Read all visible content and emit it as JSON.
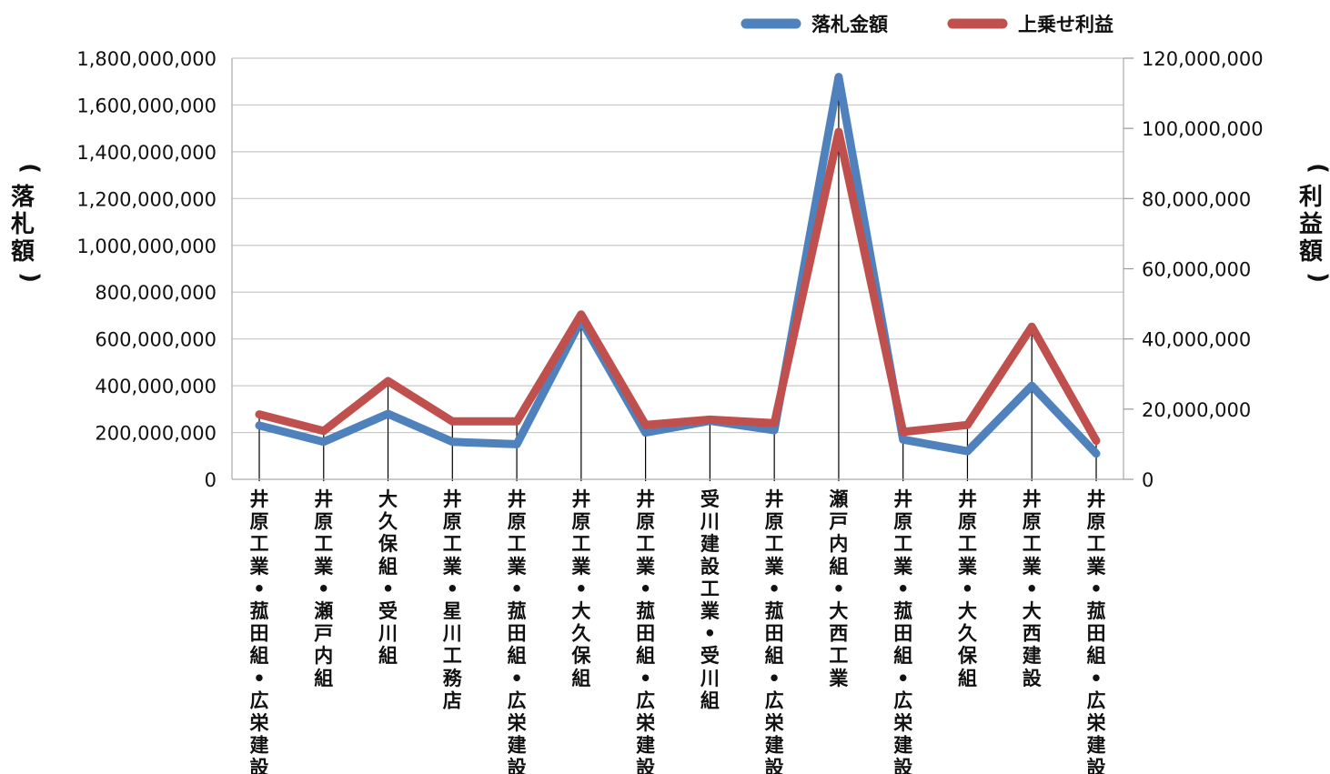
{
  "chart_data": {
    "type": "line",
    "legend_position": "top-right",
    "grid": true,
    "categories": [
      "井原工業・菰田組・広栄建設",
      "井原工業・瀬戸内組",
      "大久保組・受川組",
      "井原工業・星川工務店",
      "井原工業・菰田組・広栄建設",
      "井原工業・大久保組",
      "井原工業・菰田組・広栄建設",
      "受川建設工業・受川組",
      "井原工業・菰田組・広栄建設",
      "瀬戸内組・大西工業",
      "井原工業・菰田組・広栄建設",
      "井原工業・大久保組",
      "井原工業・大西建設",
      "井原工業・菰田組・広栄建設"
    ],
    "series": [
      {
        "name": "落札金額",
        "axis": "left",
        "color": "#4f81bd",
        "values": [
          230000000,
          160000000,
          280000000,
          160000000,
          150000000,
          680000000,
          200000000,
          250000000,
          210000000,
          1720000000,
          170000000,
          120000000,
          400000000,
          110000000
        ]
      },
      {
        "name": "上乗せ利益",
        "axis": "right",
        "color": "#c0504d",
        "values": [
          18500000,
          13800000,
          28000000,
          16500000,
          16500000,
          47000000,
          15500000,
          17000000,
          16000000,
          99000000,
          13500000,
          15500000,
          43500000,
          11000000
        ]
      }
    ],
    "y_left": {
      "label": "(落札額)",
      "ylim": [
        0,
        1800000000
      ],
      "ticks": [
        "0",
        "200,000,000",
        "400,000,000",
        "600,000,000",
        "800,000,000",
        "1,000,000,000",
        "1,200,000,000",
        "1,400,000,000",
        "1,600,000,000",
        "1,800,000,000"
      ]
    },
    "y_right": {
      "label": "(利益額)",
      "ylim": [
        0,
        120000000
      ],
      "ticks": [
        "0",
        "20,000,000",
        "40,000,000",
        "60,000,000",
        "80,000,000",
        "100,000,000",
        "120,000,000"
      ]
    }
  }
}
